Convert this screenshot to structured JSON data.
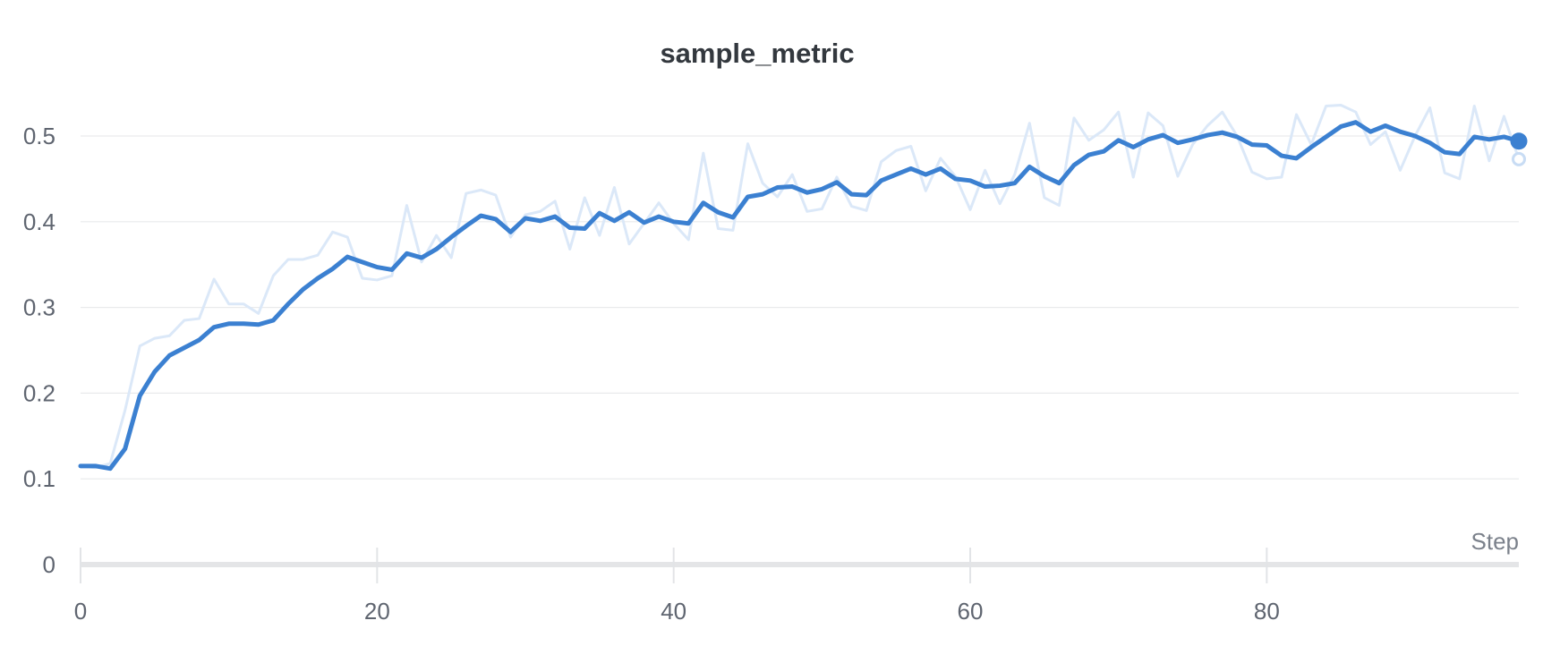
{
  "chart_data": {
    "type": "line",
    "title": "sample_metric",
    "xlabel": "Step",
    "ylabel": "",
    "x_ticks": [
      0,
      20,
      40,
      60,
      80
    ],
    "y_ticks": [
      0,
      0.1,
      0.2,
      0.3,
      0.4,
      0.5
    ],
    "xlim": [
      0,
      97
    ],
    "ylim": [
      0,
      0.56
    ],
    "x_step": 1,
    "grid": "horizontal-only",
    "legend_position": "none",
    "colors": {
      "background": "#ffffff",
      "gridline": "#e9eaec",
      "axis_bar": "#e4e5e7",
      "tick_mark": "#e2e4e7",
      "title_text": "#33383e",
      "tick_label_text": "#5f6570",
      "axis_title_text": "#7b818b",
      "raw_line": "#dbe8f8",
      "smoothed_line": "#3b80d1",
      "end_ring_stroke": "#c8dcf4"
    },
    "series": [
      {
        "name": "raw",
        "role": "original-unsmoothed",
        "color": "#dbe8f8",
        "line_width": 3,
        "end_marker": "ring",
        "end_marker_stroke": "#c8dcf4",
        "values": [
          0.115,
          0.113,
          0.118,
          0.18,
          0.255,
          0.264,
          0.267,
          0.285,
          0.287,
          0.333,
          0.304,
          0.304,
          0.293,
          0.337,
          0.356,
          0.356,
          0.361,
          0.388,
          0.382,
          0.334,
          0.332,
          0.337,
          0.419,
          0.353,
          0.384,
          0.358,
          0.433,
          0.437,
          0.431,
          0.382,
          0.408,
          0.412,
          0.424,
          0.368,
          0.428,
          0.384,
          0.44,
          0.374,
          0.398,
          0.422,
          0.398,
          0.379,
          0.48,
          0.392,
          0.39,
          0.491,
          0.445,
          0.429,
          0.455,
          0.412,
          0.415,
          0.452,
          0.418,
          0.413,
          0.47,
          0.483,
          0.488,
          0.436,
          0.474,
          0.453,
          0.414,
          0.46,
          0.421,
          0.455,
          0.515,
          0.428,
          0.419,
          0.521,
          0.495,
          0.507,
          0.528,
          0.452,
          0.527,
          0.512,
          0.453,
          0.49,
          0.512,
          0.528,
          0.5,
          0.458,
          0.45,
          0.452,
          0.525,
          0.49,
          0.535,
          0.536,
          0.528,
          0.49,
          0.505,
          0.46,
          0.5,
          0.533,
          0.457,
          0.45,
          0.535,
          0.471,
          0.523,
          0.473
        ]
      },
      {
        "name": "smoothed",
        "role": "smoothed-main",
        "color": "#3b80d1",
        "line_width": 5,
        "end_marker": "dot",
        "values": [
          0.115,
          0.115,
          0.112,
          0.135,
          0.197,
          0.225,
          0.244,
          0.253,
          0.262,
          0.277,
          0.281,
          0.281,
          0.28,
          0.285,
          0.304,
          0.321,
          0.334,
          0.345,
          0.359,
          0.353,
          0.347,
          0.344,
          0.363,
          0.358,
          0.368,
          0.382,
          0.395,
          0.407,
          0.403,
          0.388,
          0.404,
          0.401,
          0.406,
          0.393,
          0.392,
          0.41,
          0.401,
          0.411,
          0.399,
          0.406,
          0.4,
          0.398,
          0.422,
          0.411,
          0.405,
          0.429,
          0.432,
          0.44,
          0.441,
          0.434,
          0.438,
          0.446,
          0.432,
          0.431,
          0.448,
          0.455,
          0.462,
          0.455,
          0.462,
          0.45,
          0.448,
          0.441,
          0.442,
          0.445,
          0.464,
          0.453,
          0.445,
          0.466,
          0.478,
          0.482,
          0.495,
          0.487,
          0.496,
          0.501,
          0.492,
          0.496,
          0.501,
          0.504,
          0.499,
          0.49,
          0.489,
          0.477,
          0.474,
          0.487,
          0.499,
          0.511,
          0.516,
          0.505,
          0.512,
          0.505,
          0.5,
          0.492,
          0.481,
          0.479,
          0.499,
          0.496,
          0.499,
          0.494
        ]
      }
    ]
  }
}
